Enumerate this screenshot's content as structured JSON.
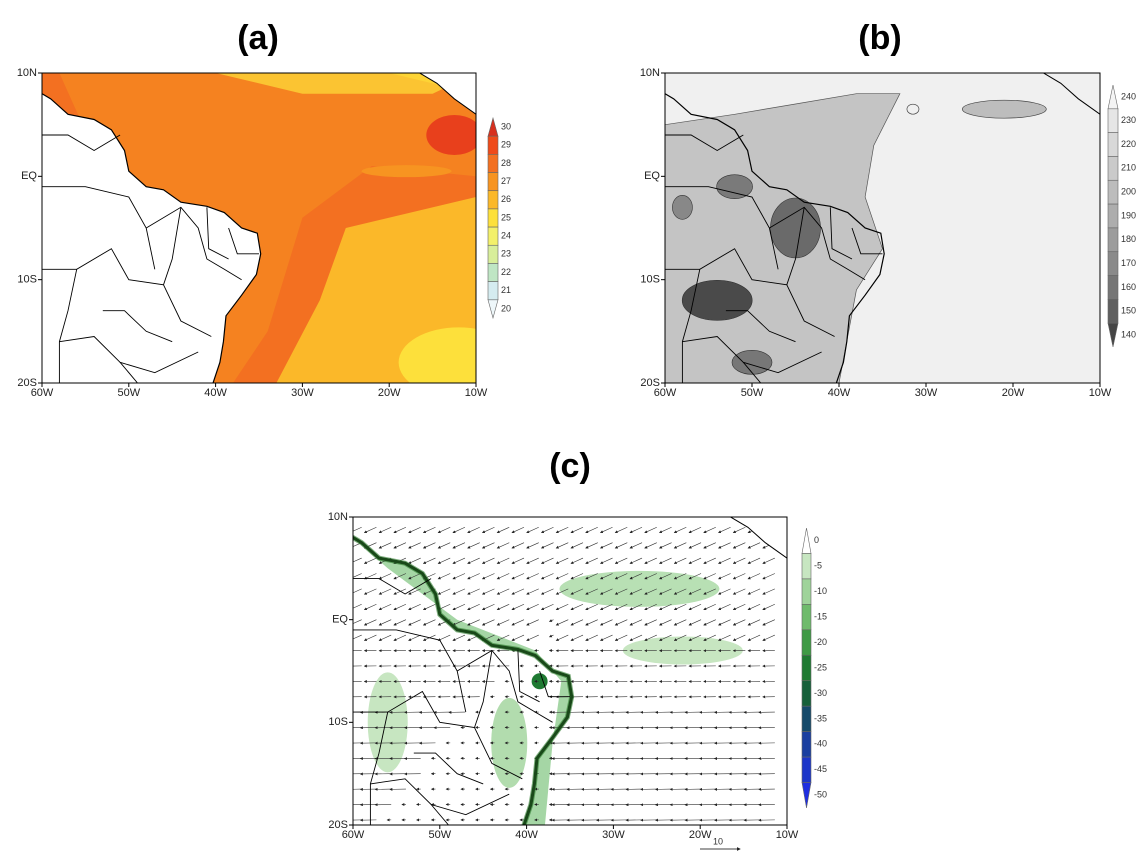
{
  "panels": [
    {
      "label": "(a)",
      "lat_labels": [
        "10N",
        "EQ",
        "10S",
        "20S"
      ],
      "lon_labels": [
        "60W",
        "50W",
        "40W",
        "30W",
        "20W",
        "10W"
      ],
      "colorbar_labels": [
        "30",
        "29",
        "28",
        "27",
        "26",
        "25",
        "24",
        "23",
        "22",
        "21",
        "20"
      ],
      "colorbar_colors": [
        "#d7301f",
        "#ef4a1a",
        "#f37021",
        "#f79421",
        "#fbb829",
        "#fde03b",
        "#f3f06a",
        "#d8ee9a",
        "#bfe6c4",
        "#d5ecf0",
        "#eef7fa"
      ]
    },
    {
      "label": "(b)",
      "lat_labels": [
        "10N",
        "EQ",
        "10S",
        "20S"
      ],
      "lon_labels": [
        "60W",
        "50W",
        "40W",
        "30W",
        "20W",
        "10W"
      ],
      "colorbar_labels": [
        "240",
        "230",
        "220",
        "210",
        "200",
        "190",
        "180",
        "170",
        "160",
        "150",
        "140"
      ],
      "colorbar_colors": [
        "#f4f4f4",
        "#e6e6e6",
        "#d8d8d8",
        "#cacaca",
        "#bcbcbc",
        "#adadad",
        "#9c9c9c",
        "#8a8a8a",
        "#767676",
        "#5f5f5f",
        "#454545"
      ]
    },
    {
      "label": "(c)",
      "lat_labels": [
        "10N",
        "EQ",
        "10S",
        "20S"
      ],
      "lon_labels": [
        "60W",
        "50W",
        "40W",
        "30W",
        "20W",
        "10W"
      ],
      "colorbar_labels": [
        "0",
        "-5",
        "-10",
        "-15",
        "-20",
        "-25",
        "-30",
        "-35",
        "-40",
        "-45",
        "-50"
      ],
      "colorbar_colors": [
        "#ffffff",
        "#c7e6c1",
        "#9fd39a",
        "#6fbb6c",
        "#3f9a45",
        "#1f7a32",
        "#16603a",
        "#154a6a",
        "#1a3fa0",
        "#1c36c9",
        "#1e2ee0"
      ]
    }
  ],
  "vector_scale_label": "10"
}
